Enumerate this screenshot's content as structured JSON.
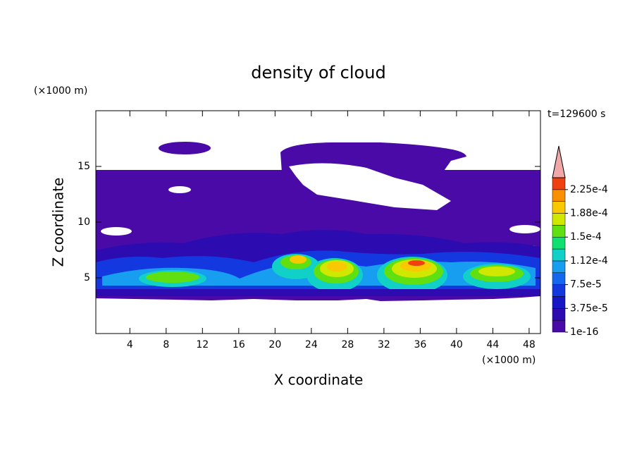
{
  "chart_data": {
    "type": "contour",
    "title": "density of cloud",
    "x_label": "X coordinate",
    "y_label": "Z coordinate",
    "x_unit": "(×1000 m)",
    "y_unit": "(×1000 m)",
    "annotation": "t=129600 s",
    "xlim": [
      0.25,
      49.25
    ],
    "xticks": [
      4,
      8,
      12,
      16,
      20,
      24,
      28,
      32,
      36,
      40,
      44,
      48
    ],
    "ylim": [
      0,
      20
    ],
    "yticks": [
      5,
      10,
      15
    ],
    "colorbar": {
      "levels": [
        0,
        1.875e-05,
        3.75e-05,
        5.625e-05,
        7.5e-05,
        9.375e-05,
        0.0001125,
        0.00013125,
        0.00015,
        0.00016875,
        0.0001875,
        0.00020625,
        0.000225,
        0.00024375
      ],
      "colors": [
        "#4a0aa8",
        "#2c0cb0",
        "#1616c4",
        "#1438e0",
        "#1468f0",
        "#189ef0",
        "#10d0c8",
        "#10e070",
        "#60e010",
        "#d0e800",
        "#f8c800",
        "#f89000",
        "#f04010"
      ],
      "over_color": "#f0a8a8",
      "ticks": [
        {
          "value": 1e-16,
          "label": "1e-16"
        },
        {
          "value": 3.75e-05,
          "label": "3.75e-5"
        },
        {
          "value": 7.5e-05,
          "label": "7.5e-5"
        },
        {
          "value": 0.0001125,
          "label": "1.12e-4"
        },
        {
          "value": 0.00015,
          "label": "1.5e-4"
        },
        {
          "value": 0.0001875,
          "label": "1.88e-4"
        },
        {
          "value": 0.000225,
          "label": "2.25e-4"
        }
      ]
    }
  }
}
